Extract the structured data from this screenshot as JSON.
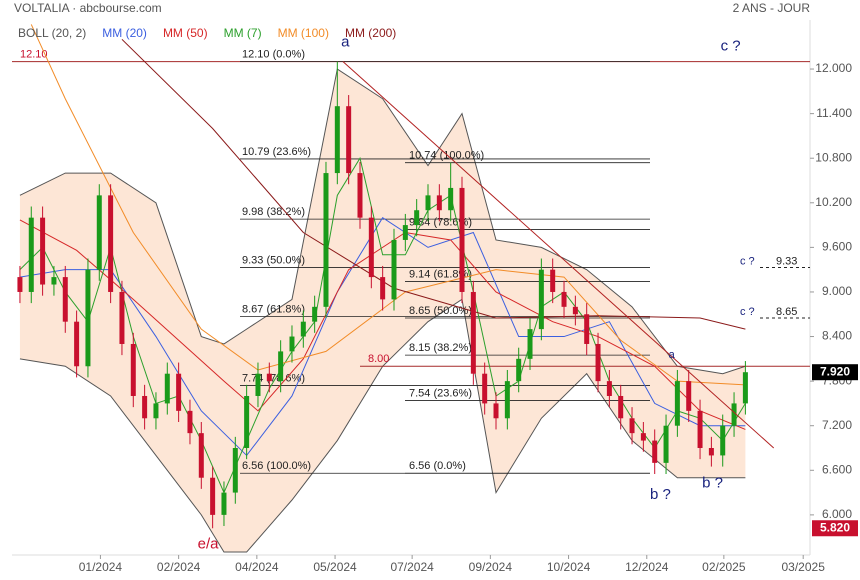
{
  "chart_data": {
    "type": "candlestick",
    "title": "VOLTALIA · abcbourse.com",
    "subtitle": "2 ANS - JOUR",
    "xlim": [
      -0.7,
      69.7
    ],
    "xticks": [
      {
        "value": 7.1,
        "label": "01/2024"
      },
      {
        "value": 14.0,
        "label": "02/2024"
      },
      {
        "value": 20.9,
        "label": "04/2024"
      },
      {
        "value": 27.8,
        "label": "05/2024"
      },
      {
        "value": 34.6,
        "label": "07/2024"
      },
      {
        "value": 41.5,
        "label": "09/2024"
      },
      {
        "value": 48.4,
        "label": "10/2024"
      },
      {
        "value": 55.3,
        "label": "12/2024"
      },
      {
        "value": 62.1,
        "label": "02/2025"
      },
      {
        "value": 69.1,
        "label": "03/2025"
      }
    ],
    "ylim": [
      5.46,
      12.66
    ],
    "yticks": [
      {
        "value": 6.0,
        "label": "6.000"
      },
      {
        "value": 6.6,
        "label": "6.600"
      },
      {
        "value": 7.2,
        "label": "7.200"
      },
      {
        "value": 7.8,
        "label": "7.800"
      },
      {
        "value": 8.4,
        "label": "8.400"
      },
      {
        "value": 9.0,
        "label": "9.000"
      },
      {
        "value": 9.6,
        "label": "9.600"
      },
      {
        "value": 10.2,
        "label": "10.200"
      },
      {
        "value": 10.8,
        "label": "10.800"
      },
      {
        "value": 11.4,
        "label": "11.400"
      },
      {
        "value": 12.0,
        "label": "12.000"
      }
    ],
    "grid": false,
    "up_color": "#1a9a1a",
    "down_color": "#c8102e",
    "candles": {
      "open": [
        9.2,
        9.0,
        10.0,
        9.1,
        9.2,
        8.6,
        8.0,
        9.3,
        10.3,
        9.0,
        8.3,
        7.6,
        7.3,
        7.5,
        7.9,
        7.4,
        7.1,
        6.5,
        6.0,
        6.3,
        6.9,
        7.6,
        7.9,
        7.8,
        8.2,
        8.4,
        8.6,
        8.8,
        10.6,
        11.5,
        10.6,
        10.0,
        9.2,
        8.9,
        9.7,
        9.9,
        10.1,
        10.3,
        10.1,
        10.4,
        9.0,
        7.9,
        7.5,
        7.3,
        7.8,
        8.1,
        8.5,
        9.3,
        9.0,
        8.8,
        8.7,
        8.3,
        7.8,
        7.6,
        7.3,
        7.1,
        7.0,
        6.7,
        7.2,
        7.8,
        7.4,
        6.9,
        6.8,
        7.2,
        7.5
      ],
      "high": [
        9.35,
        10.15,
        10.15,
        9.35,
        9.35,
        8.75,
        9.45,
        10.45,
        10.45,
        9.15,
        8.45,
        7.75,
        7.65,
        8.05,
        8.05,
        7.55,
        7.25,
        6.65,
        6.45,
        7.05,
        7.75,
        8.05,
        8.05,
        8.35,
        8.55,
        8.75,
        8.95,
        10.75,
        12.1,
        11.65,
        10.75,
        10.15,
        9.35,
        9.85,
        10.05,
        10.25,
        10.45,
        10.45,
        10.74,
        10.55,
        9.15,
        8.05,
        7.65,
        7.95,
        8.25,
        8.65,
        9.45,
        9.45,
        9.15,
        8.95,
        8.85,
        8.45,
        7.95,
        7.75,
        7.45,
        7.25,
        7.15,
        7.35,
        7.95,
        7.95,
        7.55,
        7.05,
        7.35,
        7.65,
        8.07
      ],
      "low": [
        8.85,
        8.85,
        8.95,
        8.95,
        8.45,
        7.85,
        7.85,
        9.15,
        8.85,
        8.15,
        7.45,
        7.15,
        7.15,
        7.35,
        7.25,
        6.95,
        6.35,
        5.82,
        5.85,
        6.15,
        6.75,
        7.45,
        7.65,
        7.65,
        8.05,
        8.25,
        8.45,
        8.65,
        10.45,
        10.45,
        9.85,
        9.05,
        8.75,
        8.75,
        9.55,
        9.75,
        9.95,
        9.95,
        9.95,
        8.85,
        7.75,
        7.35,
        7.15,
        7.15,
        7.65,
        7.95,
        8.35,
        8.85,
        8.65,
        8.55,
        8.15,
        7.65,
        7.45,
        7.15,
        6.95,
        6.85,
        6.55,
        6.55,
        7.05,
        7.25,
        6.75,
        6.65,
        6.65,
        7.05,
        7.35
      ],
      "close": [
        9.0,
        10.0,
        9.1,
        9.2,
        8.6,
        8.0,
        9.3,
        10.3,
        9.0,
        8.3,
        7.6,
        7.3,
        7.5,
        7.9,
        7.4,
        7.1,
        6.5,
        6.0,
        6.3,
        6.9,
        7.6,
        7.9,
        7.8,
        8.2,
        8.4,
        8.6,
        8.8,
        10.6,
        11.5,
        10.6,
        10.0,
        9.2,
        8.9,
        9.7,
        9.9,
        10.1,
        10.3,
        10.1,
        10.4,
        9.0,
        7.9,
        7.5,
        7.3,
        7.8,
        8.1,
        8.5,
        9.3,
        9.0,
        8.8,
        8.7,
        8.3,
        7.8,
        7.6,
        7.3,
        7.1,
        7.0,
        6.7,
        7.2,
        7.8,
        7.4,
        6.9,
        6.8,
        7.2,
        7.5,
        7.92
      ]
    },
    "bollinger": {
      "name": "BOLL (20, 2)",
      "color": "#555555",
      "fill": "#fde6d6",
      "x": [
        0,
        4,
        8,
        12,
        16,
        18,
        20,
        24,
        28,
        32,
        36,
        39,
        42,
        46,
        50,
        54,
        58,
        62,
        64
      ],
      "upper": [
        10.3,
        10.6,
        10.6,
        10.2,
        8.4,
        8.3,
        8.5,
        8.9,
        12.0,
        11.6,
        10.7,
        11.4,
        9.7,
        9.6,
        9.3,
        8.8,
        8.0,
        7.9,
        8.0
      ],
      "lower": [
        8.1,
        8.0,
        7.6,
        6.8,
        6.0,
        5.5,
        5.5,
        6.2,
        7.0,
        8.0,
        8.6,
        8.9,
        6.3,
        7.3,
        7.9,
        7.0,
        6.5,
        6.5,
        6.5
      ]
    },
    "indicators": [
      {
        "name": "MM (20)",
        "color": "#3b5fe0",
        "x": [
          0,
          4,
          8,
          12,
          16,
          20,
          24,
          28,
          32,
          36,
          40,
          44,
          48,
          52,
          56,
          60,
          64
        ],
        "values": [
          9.2,
          9.3,
          9.3,
          8.4,
          7.4,
          6.8,
          7.6,
          9.0,
          10.0,
          9.6,
          9.8,
          8.4,
          8.4,
          8.6,
          7.5,
          7.2,
          7.2
        ]
      },
      {
        "name": "MM (50)",
        "color": "#d62728",
        "x": [
          0,
          5,
          10,
          14,
          18,
          21,
          25,
          29,
          34,
          38,
          42,
          47,
          51,
          56,
          60,
          64
        ],
        "values": [
          9.97,
          9.56,
          8.9,
          8.35,
          7.8,
          7.4,
          8.1,
          9.3,
          9.8,
          9.7,
          9.0,
          8.6,
          8.4,
          8.0,
          7.4,
          7.15
        ]
      },
      {
        "name": "MM (7)",
        "color": "#2ca02c",
        "x": [
          0,
          2,
          4,
          6,
          8,
          10,
          12,
          14,
          16,
          18,
          20,
          22,
          24,
          26,
          28,
          30,
          32,
          34,
          36,
          38,
          40,
          42,
          44,
          46,
          48,
          50,
          52,
          54,
          56,
          58,
          60,
          62,
          64
        ],
        "values": [
          9.3,
          9.6,
          9.0,
          8.6,
          9.6,
          8.4,
          7.5,
          7.6,
          7.0,
          6.3,
          7.0,
          7.7,
          8.2,
          8.6,
          10.3,
          10.8,
          9.5,
          9.5,
          10.1,
          10.3,
          9.0,
          7.6,
          7.8,
          8.8,
          9.0,
          8.6,
          7.8,
          7.3,
          6.9,
          7.4,
          7.3,
          7.0,
          7.5
        ]
      },
      {
        "name": "MM (100)",
        "color": "#f28c28",
        "x": [
          1,
          4,
          10,
          16,
          21,
          27,
          34,
          42,
          48,
          53,
          58,
          64
        ],
        "values": [
          12.6,
          11.6,
          9.8,
          8.5,
          7.95,
          8.2,
          9.0,
          9.3,
          9.2,
          8.35,
          7.8,
          7.75
        ]
      },
      {
        "name": "MM (200)",
        "color": "#8b1a1a",
        "x": [
          9,
          17,
          25,
          33,
          42,
          51,
          60,
          64
        ],
        "values": [
          12.4,
          11.2,
          9.8,
          9.05,
          8.65,
          8.68,
          8.65,
          8.5
        ]
      }
    ],
    "fib_levels_1": [
      {
        "value": 12.1,
        "label": "12.10 (0.0%)"
      },
      {
        "value": 10.79,
        "label": "10.79 (23.6%)"
      },
      {
        "value": 9.98,
        "label": "9.98 (38.2%)"
      },
      {
        "value": 9.33,
        "label": "9.33 (50.0%)"
      },
      {
        "value": 8.67,
        "label": "8.67 (61.8%)"
      },
      {
        "value": 7.74,
        "label": "7.74 (78.6%)"
      },
      {
        "value": 6.56,
        "label": "6.56 (100.0%)"
      }
    ],
    "fib_levels_2": [
      {
        "value": 10.74,
        "label": "10.74 (100.0%)"
      },
      {
        "value": 9.84,
        "label": "9.84 (78.6%)"
      },
      {
        "value": 9.14,
        "label": "9.14 (61.8%)"
      },
      {
        "value": 8.65,
        "label": "8.65 (50.0%)"
      },
      {
        "value": 8.15,
        "label": "8.15 (38.2%)"
      },
      {
        "value": 7.54,
        "label": "7.54 (23.6%)"
      },
      {
        "value": 6.56,
        "label": "6.56 (0.0%)"
      }
    ],
    "hlines": [
      {
        "value": 12.1,
        "label": "12.10",
        "from": -0.7
      },
      {
        "value": 8.0,
        "label": "8.00",
        "from": 30
      }
    ],
    "targets": [
      {
        "value": 9.33,
        "label": "9.33",
        "tag": "c ?"
      },
      {
        "value": 8.65,
        "label": "8.65",
        "tag": "c ?"
      }
    ],
    "waves": [
      {
        "label": "a",
        "x": 28.7,
        "y": 12.36
      },
      {
        "label": "e/a",
        "x": 16.6,
        "y": 5.6
      },
      {
        "label": "c ?",
        "x": 62.7,
        "y": 12.3
      },
      {
        "label": "b ?",
        "x": 56.5,
        "y": 6.27
      },
      {
        "label": "b ?",
        "x": 61.1,
        "y": 6.42
      },
      {
        "label": "a",
        "x": 57.5,
        "y": 8.15
      }
    ],
    "trendline": {
      "color": "#b22222",
      "x": [
        28.5,
        66.5
      ],
      "values": [
        12.1,
        6.9
      ]
    },
    "last": {
      "value": 7.92,
      "label": "7.920"
    },
    "low": {
      "value": 5.82,
      "label": "5.820"
    }
  }
}
